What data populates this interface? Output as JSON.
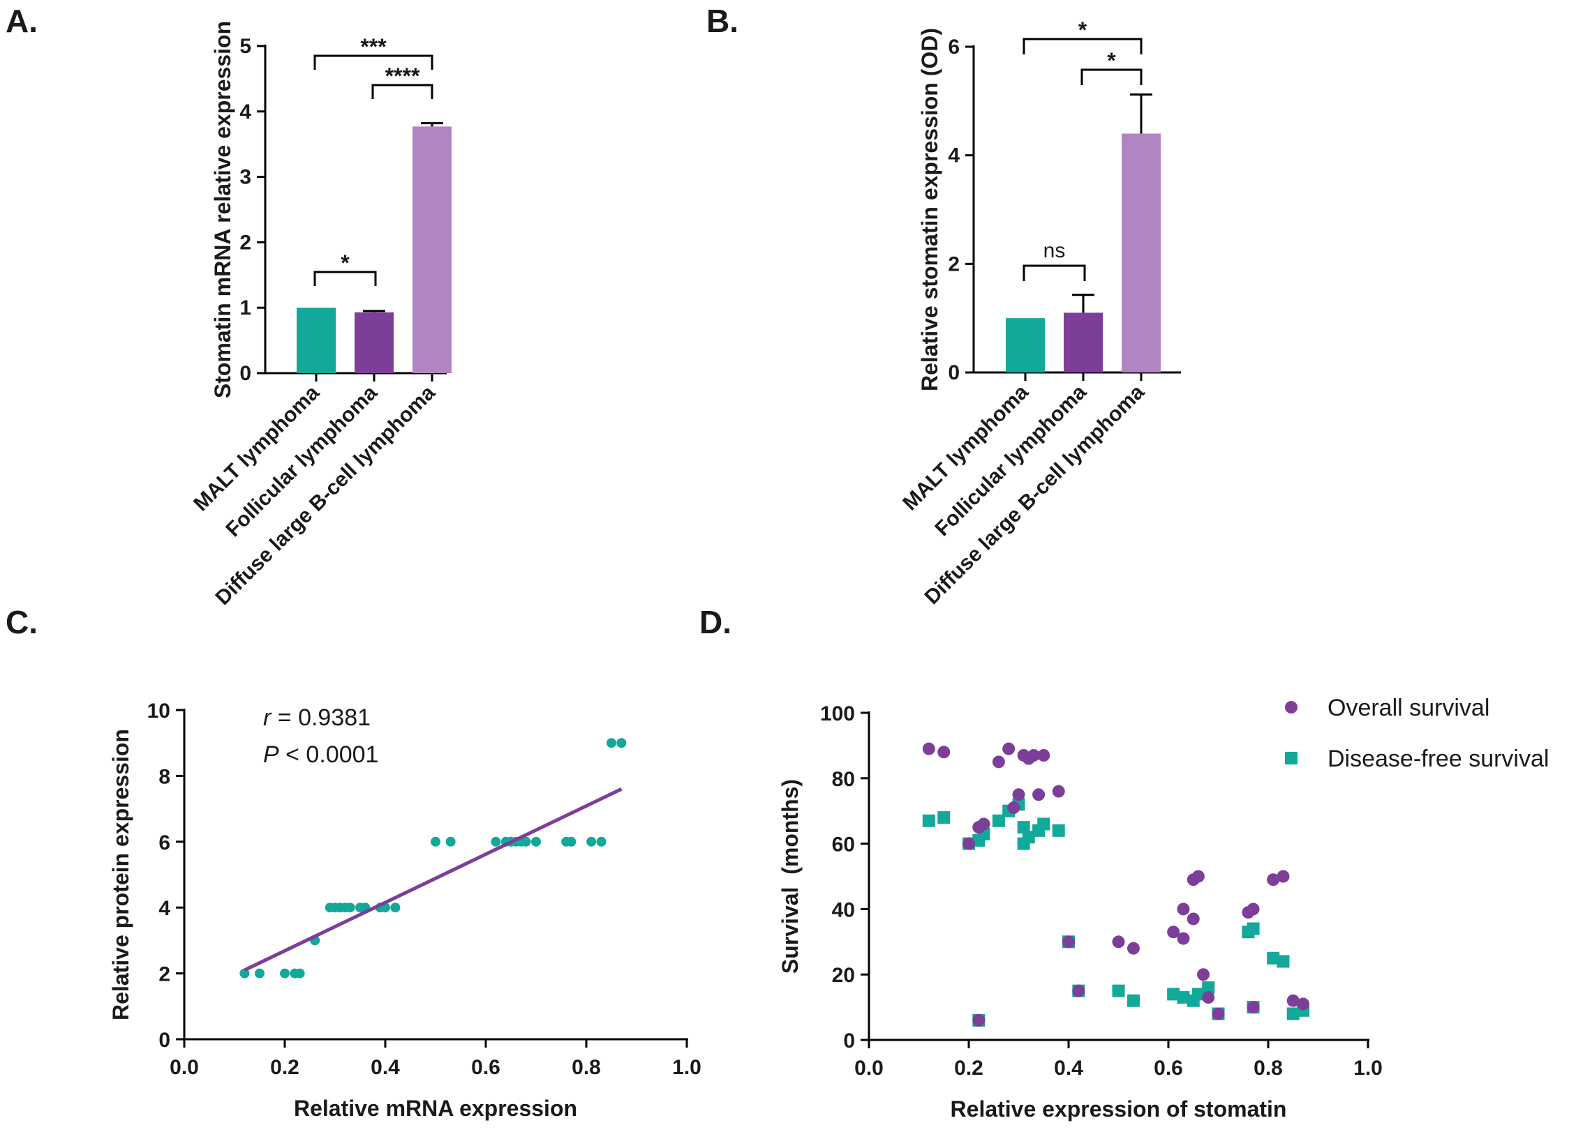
{
  "panels": {
    "a": {
      "label": "A."
    },
    "b": {
      "label": "B."
    },
    "c": {
      "label": "C."
    },
    "d": {
      "label": "D."
    }
  },
  "colors": {
    "teal": "#12a89a",
    "purple": "#7d3e99",
    "lavender": "#b184c2",
    "line": "#7d3e99"
  },
  "chart_data": [
    {
      "id": "A",
      "type": "bar",
      "title": "",
      "ylabel": "Stomatin mRNA relative expression",
      "xlabel": "",
      "ylim": [
        0,
        5
      ],
      "yticks": [
        0,
        1,
        2,
        3,
        4,
        5
      ],
      "categories": [
        "MALT lymphoma",
        "Follicular lymphoma",
        "Diffuse large B-cell lymphoma"
      ],
      "values": [
        1.0,
        0.93,
        3.77
      ],
      "errors": [
        0,
        0.02,
        0.05
      ],
      "significance": [
        {
          "from": 0,
          "to": 2,
          "label": "***"
        },
        {
          "from": 1,
          "to": 2,
          "label": "****"
        },
        {
          "from": 0,
          "to": 1,
          "label": "*"
        }
      ]
    },
    {
      "id": "B",
      "type": "bar",
      "title": "",
      "ylabel": "Relative stomatin expression (OD)",
      "xlabel": "",
      "ylim": [
        0,
        6
      ],
      "yticks": [
        0,
        2,
        4,
        6
      ],
      "categories": [
        "MALT lymphoma",
        "Follicular lymphoma",
        "Diffuse large B-cell lymphoma"
      ],
      "values": [
        1.0,
        1.1,
        4.4
      ],
      "errors": [
        0,
        0.33,
        0.72
      ],
      "significance": [
        {
          "from": 0,
          "to": 2,
          "label": "*"
        },
        {
          "from": 1,
          "to": 2,
          "label": "*"
        },
        {
          "from": 0,
          "to": 1,
          "label": "ns"
        }
      ]
    },
    {
      "id": "C",
      "type": "scatter",
      "title": "",
      "xlabel": "Relative mRNA expression",
      "ylabel": "Relative protein expression",
      "xlim": [
        0,
        1.0
      ],
      "ylim": [
        0,
        10
      ],
      "xticks": [
        "0.0",
        "0.2",
        "0.4",
        "0.6",
        "0.8",
        "1.0"
      ],
      "yticks": [
        "0",
        "2",
        "4",
        "6",
        "8",
        "10"
      ],
      "annotation_r_symbol": "r",
      "annotation_r_value": " = 0.9381",
      "annotation_p_symbol": "P",
      "annotation_p_value": " < 0.0001",
      "fit": {
        "x": [
          0.12,
          0.87
        ],
        "y": [
          2.1,
          7.6
        ]
      },
      "points": [
        [
          0.12,
          2
        ],
        [
          0.15,
          2
        ],
        [
          0.2,
          2
        ],
        [
          0.22,
          2
        ],
        [
          0.23,
          2
        ],
        [
          0.26,
          3
        ],
        [
          0.29,
          4
        ],
        [
          0.3,
          4
        ],
        [
          0.31,
          4
        ],
        [
          0.32,
          4
        ],
        [
          0.33,
          4
        ],
        [
          0.35,
          4
        ],
        [
          0.36,
          4
        ],
        [
          0.39,
          4
        ],
        [
          0.4,
          4
        ],
        [
          0.42,
          4
        ],
        [
          0.5,
          6
        ],
        [
          0.53,
          6
        ],
        [
          0.62,
          6
        ],
        [
          0.64,
          6
        ],
        [
          0.65,
          6
        ],
        [
          0.66,
          6
        ],
        [
          0.67,
          6
        ],
        [
          0.68,
          6
        ],
        [
          0.7,
          6
        ],
        [
          0.76,
          6
        ],
        [
          0.77,
          6
        ],
        [
          0.81,
          6
        ],
        [
          0.83,
          6
        ],
        [
          0.85,
          9
        ],
        [
          0.87,
          9
        ]
      ]
    },
    {
      "id": "D",
      "type": "scatter",
      "title": "",
      "xlabel": "Relative expression of stomatin",
      "ylabel": "Survival  (months)",
      "xlim": [
        0,
        1.0
      ],
      "ylim": [
        0,
        100
      ],
      "xticks": [
        "0.0",
        "0.2",
        "0.4",
        "0.6",
        "0.8",
        "1.0"
      ],
      "yticks": [
        "0",
        "20",
        "40",
        "60",
        "80",
        "100"
      ],
      "legend_position": "top-right",
      "series": [
        {
          "name": "Overall survival",
          "marker": "circle",
          "points": [
            [
              0.12,
              89
            ],
            [
              0.15,
              88
            ],
            [
              0.2,
              60
            ],
            [
              0.22,
              65
            ],
            [
              0.23,
              66
            ],
            [
              0.22,
              6
            ],
            [
              0.26,
              85
            ],
            [
              0.28,
              89
            ],
            [
              0.29,
              71
            ],
            [
              0.3,
              75
            ],
            [
              0.31,
              87
            ],
            [
              0.32,
              86
            ],
            [
              0.33,
              87
            ],
            [
              0.34,
              75
            ],
            [
              0.35,
              87
            ],
            [
              0.38,
              76
            ],
            [
              0.4,
              30
            ],
            [
              0.42,
              15
            ],
            [
              0.5,
              30
            ],
            [
              0.53,
              28
            ],
            [
              0.61,
              33
            ],
            [
              0.63,
              40
            ],
            [
              0.63,
              31
            ],
            [
              0.65,
              49
            ],
            [
              0.66,
              50
            ],
            [
              0.65,
              37
            ],
            [
              0.67,
              20
            ],
            [
              0.68,
              13
            ],
            [
              0.7,
              8
            ],
            [
              0.76,
              39
            ],
            [
              0.77,
              40
            ],
            [
              0.77,
              10
            ],
            [
              0.81,
              49
            ],
            [
              0.83,
              50
            ],
            [
              0.85,
              12
            ],
            [
              0.87,
              11
            ]
          ]
        },
        {
          "name": "Disease-free survival",
          "marker": "square",
          "points": [
            [
              0.12,
              67
            ],
            [
              0.15,
              68
            ],
            [
              0.2,
              60
            ],
            [
              0.22,
              61
            ],
            [
              0.23,
              63
            ],
            [
              0.22,
              6
            ],
            [
              0.26,
              67
            ],
            [
              0.28,
              70
            ],
            [
              0.3,
              72
            ],
            [
              0.31,
              65
            ],
            [
              0.31,
              60
            ],
            [
              0.32,
              62
            ],
            [
              0.34,
              64
            ],
            [
              0.35,
              66
            ],
            [
              0.38,
              64
            ],
            [
              0.4,
              30
            ],
            [
              0.42,
              15
            ],
            [
              0.5,
              15
            ],
            [
              0.53,
              12
            ],
            [
              0.61,
              14
            ],
            [
              0.63,
              13
            ],
            [
              0.65,
              12
            ],
            [
              0.66,
              14
            ],
            [
              0.68,
              16
            ],
            [
              0.7,
              8
            ],
            [
              0.76,
              33
            ],
            [
              0.77,
              34
            ],
            [
              0.77,
              10
            ],
            [
              0.81,
              25
            ],
            [
              0.83,
              24
            ],
            [
              0.85,
              8
            ],
            [
              0.87,
              9
            ]
          ]
        }
      ]
    }
  ]
}
